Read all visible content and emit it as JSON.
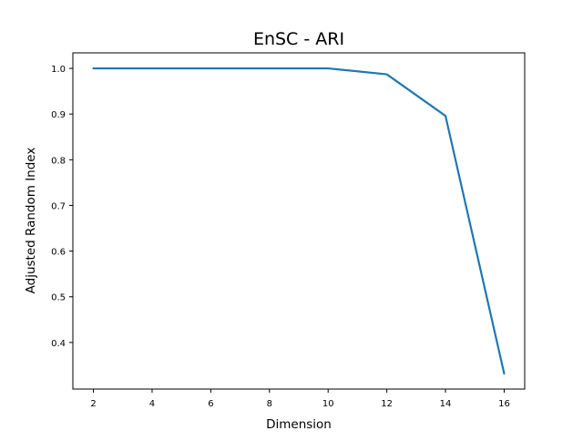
{
  "chart_data": {
    "type": "line",
    "title": "EnSC - ARI",
    "xlabel": "Dimension",
    "ylabel": "Adjusted Random Index",
    "x": [
      2,
      4,
      6,
      8,
      10,
      12,
      14,
      16
    ],
    "series": [
      {
        "values": [
          1.0,
          1.0,
          1.0,
          1.0,
          1.0,
          0.987,
          0.896,
          0.332
        ],
        "color": "#1f77b4"
      }
    ],
    "xlim": [
      1.3,
      16.7
    ],
    "ylim": [
      0.298,
      1.034
    ],
    "xticks": [
      2,
      4,
      6,
      8,
      10,
      12,
      14,
      16
    ],
    "yticks": [
      0.4,
      0.5,
      0.6,
      0.7,
      0.8,
      0.9,
      1.0
    ],
    "grid": false,
    "legend": "none"
  }
}
